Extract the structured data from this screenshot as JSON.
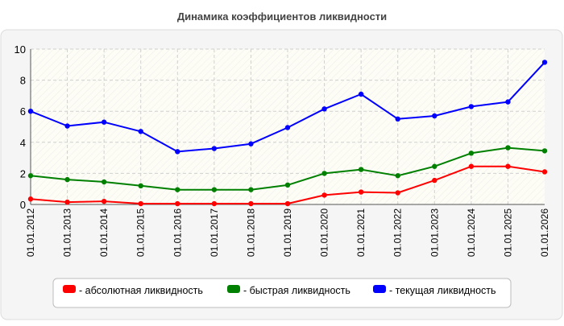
{
  "chart_data": {
    "type": "line",
    "title": "Динамика коэффициентов ликвидности",
    "x": [
      "01.01.2012",
      "01.01.2013",
      "01.01.2014",
      "01.01.2015",
      "01.01.2016",
      "01.01.2017",
      "01.01.2018",
      "01.01.2019",
      "01.01.2020",
      "01.01.2021",
      "01.01.2022",
      "01.01.2023",
      "01.01.2024",
      "01.01.2025",
      "01.01.2026"
    ],
    "ylim": [
      0,
      10
    ],
    "yticks": [
      "0",
      "2",
      "4",
      "6",
      "8",
      "10"
    ],
    "grid": true,
    "legend_position": "bottom",
    "series": [
      {
        "name": "- абсолютная ликвидность",
        "color": "#ff0000",
        "values": [
          0.35,
          0.15,
          0.2,
          0.05,
          0.05,
          0.05,
          0.05,
          0.05,
          0.6,
          0.8,
          0.75,
          1.55,
          2.45,
          2.45,
          2.1
        ]
      },
      {
        "name": "- быстрая ликвидность",
        "color": "#008000",
        "values": [
          1.85,
          1.6,
          1.45,
          1.2,
          0.95,
          0.95,
          0.95,
          1.25,
          2.0,
          2.25,
          1.85,
          2.45,
          3.3,
          3.65,
          3.45
        ]
      },
      {
        "name": "- текущая ликвидность",
        "color": "#0000ff",
        "values": [
          6.0,
          5.05,
          5.3,
          4.7,
          3.4,
          3.6,
          3.9,
          4.95,
          6.15,
          7.1,
          5.5,
          5.7,
          6.3,
          6.6,
          9.15
        ]
      }
    ]
  }
}
